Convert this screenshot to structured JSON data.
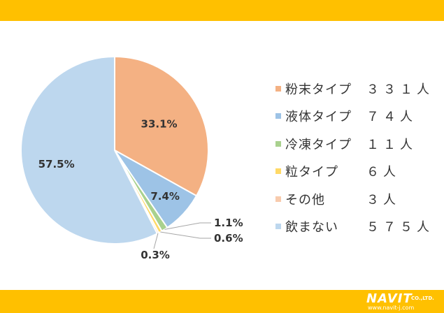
{
  "chart_data": {
    "type": "pie",
    "slices": [
      {
        "label": "粉末タイプ",
        "count": "３３１人",
        "value": 33.1,
        "value_label": "33.1%",
        "color": "#F4B183"
      },
      {
        "label": "液体タイプ",
        "count": "７４人",
        "value": 7.4,
        "value_label": "7.4%",
        "color": "#9DC3E6"
      },
      {
        "label": "冷凍タイプ",
        "count": "１１人",
        "value": 1.1,
        "value_label": "1.1%",
        "color": "#A9D18E"
      },
      {
        "label": "粒タイプ",
        "count": "６人",
        "value": 0.6,
        "value_label": "0.6%",
        "color": "#FFD966"
      },
      {
        "label": "その他",
        "count": "３人",
        "value": 0.3,
        "value_label": "0.3%",
        "color": "#F8CBAD"
      },
      {
        "label": "飲まない",
        "count": "５７５人",
        "value": 57.5,
        "value_label": "57.5%",
        "color": "#BDD7EE"
      }
    ],
    "legend_position": "right",
    "start_angle_deg": 0,
    "direction": "clockwise"
  },
  "branding": {
    "logo_name": "NAVIT",
    "logo_company": "CO.,LTD.",
    "logo_url": "www.navit-j.com",
    "accent_color": "#FFC000"
  }
}
